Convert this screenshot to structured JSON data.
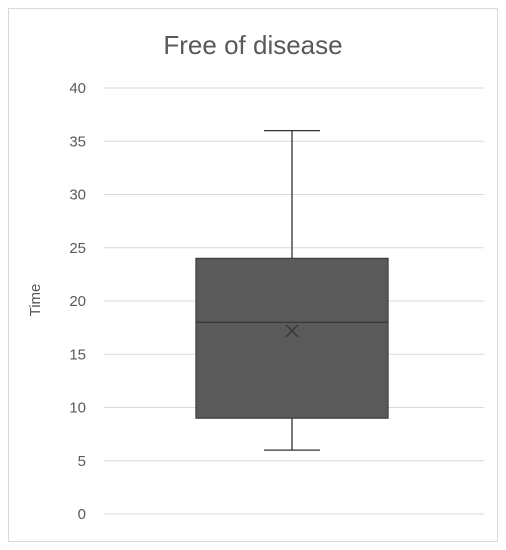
{
  "chart_data": {
    "type": "box",
    "title": "Free of disease",
    "xlabel": "",
    "ylabel": "Time",
    "ylim": [
      0,
      40
    ],
    "yticks": [
      0,
      5,
      10,
      15,
      20,
      25,
      30,
      35,
      40
    ],
    "grid": true,
    "legend": "none",
    "box": {
      "min": 6,
      "q1": 9,
      "median": 18,
      "q3": 24,
      "max": 36,
      "mean": 17.2
    },
    "colors": {
      "box_fill": "#5a5a5a",
      "box_stroke": "#404040",
      "grid": "#d9d9d9",
      "text": "#595959"
    }
  }
}
